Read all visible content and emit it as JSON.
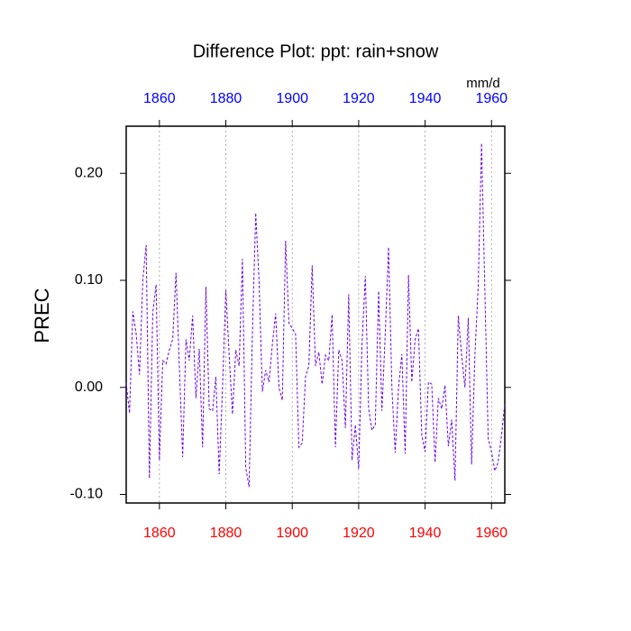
{
  "chart_data": {
    "type": "line",
    "title": "Difference Plot: ppt: rain+snow",
    "ylabel": "PREC",
    "units": "mm/d",
    "x": [
      1850,
      1851,
      1852,
      1853,
      1854,
      1855,
      1856,
      1857,
      1858,
      1859,
      1860,
      1861,
      1862,
      1863,
      1864,
      1865,
      1866,
      1867,
      1868,
      1869,
      1870,
      1871,
      1872,
      1873,
      1874,
      1875,
      1876,
      1877,
      1878,
      1879,
      1880,
      1881,
      1882,
      1883,
      1884,
      1885,
      1886,
      1887,
      1888,
      1889,
      1890,
      1891,
      1892,
      1893,
      1894,
      1895,
      1896,
      1897,
      1898,
      1899,
      1900,
      1901,
      1902,
      1903,
      1904,
      1905,
      1906,
      1907,
      1908,
      1909,
      1910,
      1911,
      1912,
      1913,
      1914,
      1915,
      1916,
      1917,
      1918,
      1919,
      1920,
      1921,
      1922,
      1923,
      1924,
      1925,
      1926,
      1927,
      1928,
      1929,
      1930,
      1931,
      1932,
      1933,
      1934,
      1935,
      1936,
      1937,
      1938,
      1939,
      1940,
      1941,
      1942,
      1943,
      1944,
      1945,
      1946,
      1947,
      1948,
      1949,
      1950,
      1951,
      1952,
      1953,
      1954,
      1955,
      1956,
      1957,
      1958,
      1959,
      1960,
      1961,
      1962,
      1963,
      1964
    ],
    "series": [
      {
        "name": "PREC",
        "color": "#6a00e0",
        "dash": "3,2",
        "values": [
          0.004,
          -0.024,
          0.071,
          0.05,
          0.012,
          0.1,
          0.133,
          -0.085,
          0.07,
          0.096,
          -0.068,
          0.025,
          0.022,
          0.035,
          0.045,
          0.107,
          0.02,
          -0.065,
          0.045,
          0.025,
          0.067,
          -0.01,
          0.036,
          -0.056,
          0.094,
          -0.02,
          -0.022,
          0.01,
          -0.081,
          0.0,
          0.091,
          0.03,
          -0.025,
          0.035,
          0.02,
          0.12,
          -0.075,
          -0.093,
          0.05,
          0.163,
          0.1,
          -0.004,
          0.016,
          0.005,
          0.04,
          0.069,
          0.0,
          -0.012,
          0.137,
          0.06,
          0.055,
          0.05,
          -0.056,
          -0.052,
          0.01,
          0.02,
          0.114,
          0.02,
          0.033,
          0.003,
          0.03,
          0.025,
          0.068,
          -0.056,
          0.035,
          0.025,
          -0.038,
          0.087,
          -0.068,
          -0.035,
          -0.076,
          0.04,
          0.104,
          -0.02,
          -0.04,
          -0.035,
          0.09,
          -0.022,
          0.05,
          0.131,
          0.0,
          -0.061,
          0.0,
          0.031,
          -0.062,
          0.105,
          0.005,
          0.045,
          0.055,
          -0.045,
          -0.06,
          0.005,
          0.003,
          -0.07,
          -0.01,
          -0.02,
          0.002,
          -0.055,
          -0.03,
          -0.087,
          0.067,
          0.03,
          0.0,
          0.065,
          -0.072,
          0.03,
          0.095,
          0.228,
          0.09,
          -0.048,
          -0.06,
          -0.078,
          -0.07,
          -0.045,
          -0.015
        ]
      }
    ],
    "xlim": [
      1850,
      1964
    ],
    "ylim": [
      -0.108,
      0.244
    ],
    "xticks": [
      1860,
      1880,
      1900,
      1920,
      1940,
      1960
    ],
    "yticks": [
      {
        "value": -0.1,
        "label": "-0.10"
      },
      {
        "value": 0,
        "label": "0.00"
      },
      {
        "value": 0.1,
        "label": "0.10"
      },
      {
        "value": 0.2,
        "label": "0.20"
      }
    ],
    "xtick_color": "#ff0000",
    "x2tick_color": "#0000ff",
    "grid": true
  }
}
